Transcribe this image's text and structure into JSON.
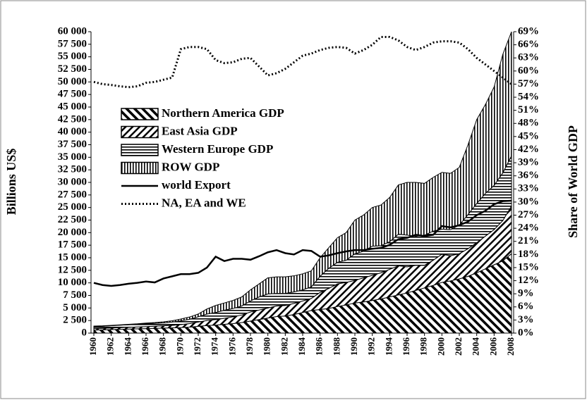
{
  "chart_data": {
    "type": "stacked-area",
    "ylabel": "Billions US$",
    "y2label": "Share of  World GDP",
    "x": [
      1960,
      1961,
      1962,
      1963,
      1964,
      1965,
      1966,
      1967,
      1968,
      1969,
      1970,
      1971,
      1972,
      1973,
      1974,
      1975,
      1976,
      1977,
      1978,
      1979,
      1980,
      1981,
      1982,
      1983,
      1984,
      1985,
      1986,
      1987,
      1988,
      1989,
      1990,
      1991,
      1992,
      1993,
      1994,
      1995,
      1996,
      1997,
      1998,
      1999,
      2000,
      2001,
      2002,
      2003,
      2004,
      2005,
      2006,
      2007,
      2008
    ],
    "xlim": [
      1960,
      2008
    ],
    "xticks": [
      1960,
      1962,
      1964,
      1966,
      1968,
      1970,
      1972,
      1974,
      1976,
      1978,
      1980,
      1982,
      1984,
      1986,
      1988,
      1990,
      1992,
      1994,
      1996,
      1998,
      2000,
      2002,
      2004,
      2006,
      2008
    ],
    "ylim": [
      0,
      60000
    ],
    "yticks": [
      0,
      {
        "value": 2500,
        "label": "2 500"
      },
      {
        "value": 5000,
        "label": "5 000"
      },
      {
        "value": 7500,
        "label": "7 500"
      },
      {
        "value": 10000,
        "label": "10 000"
      },
      {
        "value": 12500,
        "label": "12 500"
      },
      {
        "value": 15000,
        "label": "15 000"
      },
      {
        "value": 17500,
        "label": "17 500"
      },
      {
        "value": 20000,
        "label": "20 000"
      },
      {
        "value": 22500,
        "label": "22 500"
      },
      {
        "value": 25000,
        "label": "25 000"
      },
      {
        "value": 27500,
        "label": "27 500"
      },
      {
        "value": 30000,
        "label": "30 000"
      },
      {
        "value": 32500,
        "label": "32 500"
      },
      {
        "value": 35000,
        "label": "35 000"
      },
      {
        "value": 37500,
        "label": "37 500"
      },
      {
        "value": 40000,
        "label": "40 000"
      },
      {
        "value": 42500,
        "label": "42 500"
      },
      {
        "value": 45000,
        "label": "45 000"
      },
      {
        "value": 47500,
        "label": "47 500"
      },
      {
        "value": 50000,
        "label": "50 000"
      },
      {
        "value": 52500,
        "label": "52 500"
      },
      {
        "value": 55000,
        "label": "55 000"
      },
      {
        "value": 57500,
        "label": "57 500"
      },
      {
        "value": 60000,
        "label": "60 000"
      }
    ],
    "y2lim": [
      0,
      69
    ],
    "y2ticks": [
      {
        "value": 0,
        "label": "0%"
      },
      {
        "value": 3,
        "label": "3%"
      },
      {
        "value": 6,
        "label": "6%"
      },
      {
        "value": 9,
        "label": "9%"
      },
      {
        "value": 12,
        "label": "12%"
      },
      {
        "value": 15,
        "label": "15%"
      },
      {
        "value": 18,
        "label": "18%"
      },
      {
        "value": 21,
        "label": "21%"
      },
      {
        "value": 24,
        "label": "24%"
      },
      {
        "value": 27,
        "label": "27%"
      },
      {
        "value": 30,
        "label": "30%"
      },
      {
        "value": 33,
        "label": "33%"
      },
      {
        "value": 36,
        "label": "36%"
      },
      {
        "value": 39,
        "label": "39%"
      },
      {
        "value": 42,
        "label": "42%"
      },
      {
        "value": 45,
        "label": "45%"
      },
      {
        "value": 48,
        "label": "48%"
      },
      {
        "value": 51,
        "label": "51%"
      },
      {
        "value": 54,
        "label": "54%"
      },
      {
        "value": 57,
        "label": "57%"
      },
      {
        "value": 60,
        "label": "60%"
      },
      {
        "value": 63,
        "label": "63%"
      },
      {
        "value": 66,
        "label": "66%"
      },
      {
        "value": 69,
        "label": "69%"
      }
    ],
    "series": [
      {
        "name": "Northern America  GDP",
        "kind": "area",
        "hatch": "backslash",
        "color": "#000000",
        "values": [
          600,
          650,
          700,
          750,
          800,
          850,
          900,
          950,
          1000,
          1050,
          1100,
          1200,
          1350,
          1500,
          1600,
          1750,
          1900,
          2100,
          2400,
          2700,
          3000,
          3300,
          3400,
          3700,
          4100,
          4500,
          4700,
          4900,
          5300,
          5600,
          6000,
          6200,
          6500,
          6800,
          7200,
          7600,
          8000,
          8500,
          9000,
          9500,
          10100,
          10400,
          10800,
          11300,
          12000,
          12800,
          13600,
          14400,
          15800
        ]
      },
      {
        "name": "East Asia  GDP",
        "kind": "area",
        "hatch": "slash",
        "color": "#000000",
        "values": [
          300,
          300,
          320,
          340,
          360,
          380,
          400,
          420,
          450,
          500,
          600,
          700,
          850,
          1000,
          1100,
          1200,
          1350,
          1500,
          1800,
          1900,
          2000,
          2100,
          2100,
          2200,
          2300,
          2400,
          3400,
          4000,
          4500,
          4500,
          4500,
          4800,
          5000,
          5200,
          5500,
          5800,
          5200,
          5000,
          4500,
          5000,
          5600,
          5000,
          5000,
          5500,
          6000,
          6500,
          7000,
          8000,
          9500
        ]
      },
      {
        "name": "Western  Europe GDP",
        "kind": "area",
        "hatch": "horizontal",
        "color": "#000000",
        "values": [
          400,
          420,
          450,
          480,
          500,
          530,
          560,
          580,
          600,
          650,
          750,
          850,
          1050,
          1300,
          1400,
          1600,
          1650,
          1800,
          2200,
          2600,
          2800,
          2500,
          2400,
          2300,
          2200,
          2300,
          3200,
          4000,
          4300,
          4400,
          5300,
          5300,
          5800,
          5400,
          5500,
          6300,
          6300,
          5800,
          6000,
          5800,
          5000,
          5200,
          5700,
          6800,
          7800,
          8500,
          8800,
          9500,
          10000
        ]
      },
      {
        "name": "ROW GDP",
        "kind": "area",
        "hatch": "vertical",
        "color": "#000000",
        "values": [
          100,
          80,
          80,
          80,
          90,
          90,
          140,
          150,
          200,
          250,
          350,
          450,
          550,
          1000,
          1400,
          1450,
          1600,
          1800,
          2200,
          2600,
          3200,
          3300,
          3300,
          3200,
          3200,
          3200,
          3700,
          4100,
          4900,
          5500,
          6700,
          7200,
          7700,
          8100,
          8800,
          9800,
          10500,
          10700,
          10300,
          10700,
          11300,
          11200,
          11500,
          13900,
          16700,
          17700,
          19600,
          23600,
          24700
        ]
      },
      {
        "name": "world Export",
        "kind": "line",
        "dash": "solid",
        "axis": "y2",
        "color": "#000000",
        "values": [
          11.5,
          11,
          10.8,
          11,
          11.3,
          11.5,
          11.8,
          11.6,
          12.5,
          13,
          13.5,
          13.5,
          13.8,
          15,
          17.5,
          16.5,
          17,
          17,
          16.8,
          17.6,
          18.5,
          19,
          18.3,
          18,
          19,
          18.8,
          17.5,
          17.8,
          18.3,
          18.7,
          19,
          19,
          19.3,
          19.5,
          20.2,
          21.5,
          21.8,
          22.5,
          22.2,
          22.5,
          24.5,
          24.2,
          24.7,
          25.5,
          27,
          28,
          29.5,
          30.2,
          30.3
        ]
      },
      {
        "name": "NA, EA and WE",
        "kind": "line",
        "dash": "dotted",
        "axis": "y2",
        "color": "#000000",
        "values": [
          57.5,
          57,
          56.8,
          56.5,
          56.3,
          56.5,
          57.3,
          57.5,
          58,
          58.5,
          65,
          65.5,
          65.5,
          65,
          62.5,
          61.8,
          62,
          62.8,
          63,
          61,
          59,
          59.5,
          60.5,
          62,
          63.5,
          64,
          64.8,
          65.3,
          65.5,
          65.3,
          64,
          64.8,
          66,
          67.8,
          67.8,
          67,
          65.5,
          64.8,
          65.5,
          66.5,
          66.8,
          66.8,
          66.5,
          65,
          63,
          61.5,
          60,
          58.5,
          57
        ]
      }
    ]
  }
}
